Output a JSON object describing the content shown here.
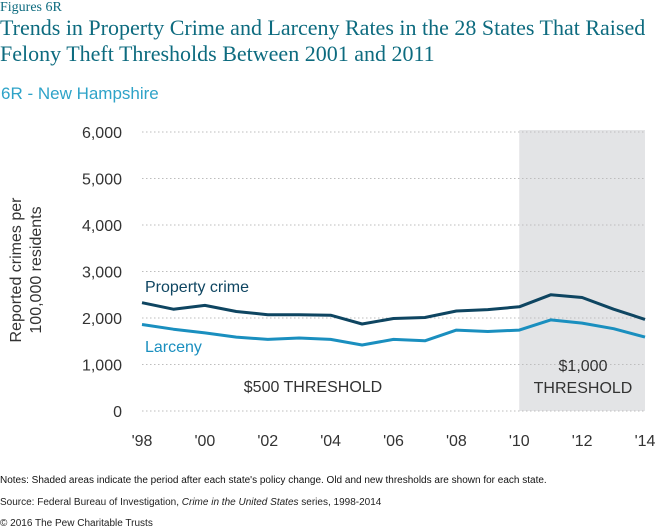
{
  "header": {
    "figure_label": "Figures 6R",
    "title": "Trends in Property Crime and Larceny Rates in the 28 States That Raised Felony Theft Thresholds Between 2001 and 2011",
    "subtitle": "6R - New Hampshire"
  },
  "chart_data": {
    "type": "line",
    "ylabel": "Reported crimes per 100,000 residents",
    "ylim": [
      0,
      6000
    ],
    "yticks": [
      0,
      1000,
      2000,
      3000,
      4000,
      5000,
      6000
    ],
    "ytick_labels": [
      "0",
      "1,000",
      "2,000",
      "3,000",
      "4,000",
      "5,000",
      "6,000"
    ],
    "xlim": [
      1998,
      2014
    ],
    "xticks": [
      1998,
      2000,
      2002,
      2004,
      2006,
      2008,
      2010,
      2012,
      2014
    ],
    "xtick_labels": [
      "'98",
      "'00",
      "'02",
      "'04",
      "'06",
      "'08",
      "'10",
      "'12",
      "'14"
    ],
    "x": [
      1998,
      1999,
      2000,
      2001,
      2002,
      2003,
      2004,
      2005,
      2006,
      2007,
      2008,
      2009,
      2010,
      2011,
      2012,
      2013,
      2014
    ],
    "series": [
      {
        "name": "Property crime",
        "color": "#0e4561",
        "values": [
          2330,
          2190,
          2270,
          2140,
          2070,
          2070,
          2060,
          1870,
          1990,
          2010,
          2150,
          2180,
          2240,
          2500,
          2440,
          2190,
          1970
        ]
      },
      {
        "name": "Larceny",
        "color": "#1a8fbf",
        "values": [
          1860,
          1760,
          1680,
          1590,
          1540,
          1570,
          1540,
          1420,
          1540,
          1510,
          1740,
          1710,
          1740,
          1960,
          1890,
          1770,
          1590
        ]
      }
    ],
    "shaded_region": {
      "from": 2010,
      "to": 2014,
      "color": "#e3e4e6"
    },
    "annotations": [
      {
        "text": "$500 THRESHOLD"
      },
      {
        "lines": [
          "$1,000",
          "THRESHOLD"
        ]
      }
    ]
  },
  "footer": {
    "notes": "Notes: Shaded areas indicate the period after each state's policy change. Old and new thresholds are shown for each state.",
    "source_prefix": "Source: Federal Bureau of Investigation, ",
    "source_title": "Crime in the United States",
    "source_suffix": " series, 1998-2014",
    "copyright": "© 2016 The Pew Charitable Trusts"
  }
}
